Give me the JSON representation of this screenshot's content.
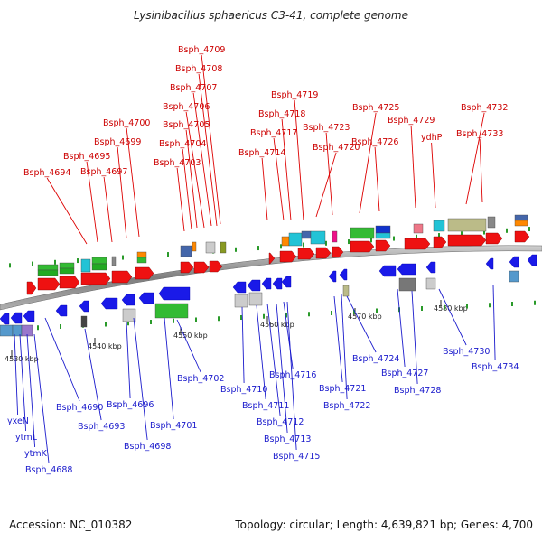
{
  "title": "Lysinibacillus sphaericus C3-41, complete genome",
  "footer": {
    "accession": "Accession: NC_010382",
    "summary": "Topology: circular; Length: 4,639,821 bp; Genes: 4,700"
  },
  "ticks": [
    "4530 kbp",
    "4540 kbp",
    "4550 kbp",
    "4560 kbp",
    "4570 kbp",
    "4580 kbp"
  ],
  "top_labels": [
    "Bsph_4694",
    "Bsph_4695",
    "Bsph_4697",
    "Bsph_4699",
    "Bsph_4700",
    "Bsph_4703",
    "Bsph_4704",
    "Bsph_4705",
    "Bsph_4706",
    "Bsph_4707",
    "Bsph_4708",
    "Bsph_4709",
    "Bsph_4714",
    "Bsph_4717",
    "Bsph_4718",
    "Bsph_4719",
    "Bsph_4720",
    "Bsph_4723",
    "Bsph_4725",
    "Bsph_4726",
    "Bsph_4729",
    "ydhP",
    "Bsph_4732",
    "Bsph_4733"
  ],
  "bottom_labels": [
    "yxeN",
    "ytmL",
    "ytmK",
    "Bsph_4688",
    "Bsph_4690",
    "Bsph_4693",
    "Bsph_4696",
    "Bsph_4698",
    "Bsph_4701",
    "Bsph_4702",
    "Bsph_4710",
    "Bsph_4711",
    "Bsph_4712",
    "Bsph_4713",
    "Bsph_4715",
    "Bsph_4716",
    "Bsph_4721",
    "Bsph_4722",
    "Bsph_4724",
    "Bsph_4727",
    "Bsph_4728",
    "Bsph_4730",
    "Bsph_4734"
  ]
}
